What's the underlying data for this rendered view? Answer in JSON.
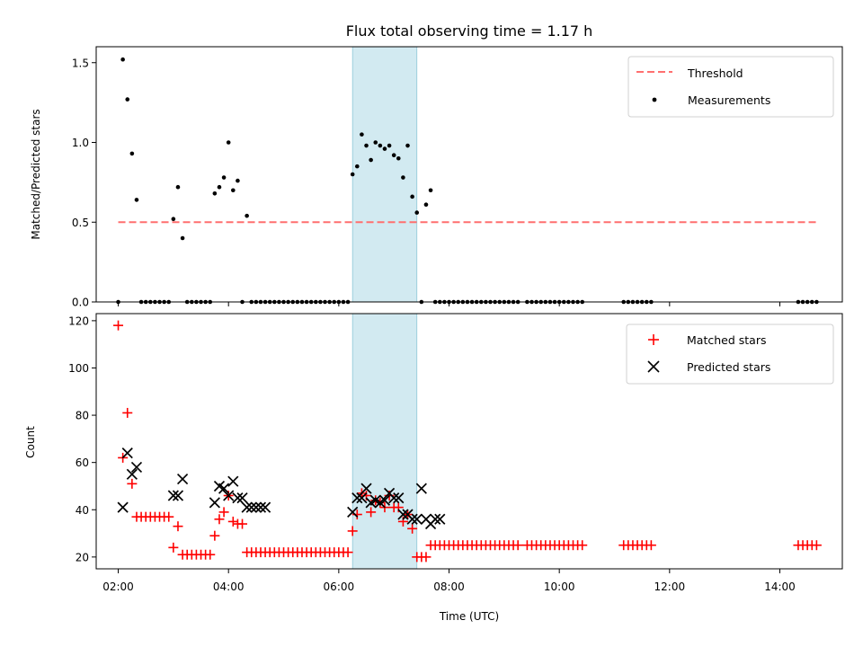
{
  "chart_data": [
    {
      "type": "scatter",
      "title": "Flux total observing time = 1.17 h",
      "xlabel": "",
      "ylabel": "Matched/Predicted stars",
      "xlim": [
        "01:36",
        "15:08"
      ],
      "ylim": [
        0,
        1.6
      ],
      "yticks": [
        0.0,
        0.5,
        1.0,
        1.5
      ],
      "ytick_labels": [
        "0.0",
        "0.5",
        "1.0",
        "1.5"
      ],
      "highlight_span": [
        "06:15",
        "07:25"
      ],
      "legend": [
        "Threshold",
        "Measurements"
      ],
      "legend_position": "upper right",
      "threshold": {
        "name": "Threshold",
        "y": 0.5,
        "x_start": "02:00",
        "x_end": "14:40",
        "color": "#ff6f6f"
      },
      "series": [
        {
          "name": "Measurements",
          "color": "#000000",
          "x": [
            "02:00",
            "02:05",
            "02:10",
            "02:15",
            "02:20",
            "02:25",
            "02:30",
            "02:35",
            "02:40",
            "02:45",
            "02:50",
            "02:55",
            "03:00",
            "03:05",
            "03:10",
            "03:15",
            "03:20",
            "03:25",
            "03:30",
            "03:35",
            "03:40",
            "03:45",
            "03:50",
            "03:55",
            "04:00",
            "04:05",
            "04:10",
            "04:15",
            "04:20",
            "04:25",
            "04:30",
            "04:35",
            "04:40",
            "04:45",
            "04:50",
            "04:55",
            "05:00",
            "05:05",
            "05:10",
            "05:15",
            "05:20",
            "05:25",
            "05:30",
            "05:35",
            "05:40",
            "05:45",
            "05:50",
            "05:55",
            "06:00",
            "06:05",
            "06:10",
            "06:15",
            "06:20",
            "06:25",
            "06:30",
            "06:35",
            "06:40",
            "06:45",
            "06:50",
            "06:55",
            "07:00",
            "07:05",
            "07:10",
            "07:15",
            "07:20",
            "07:25",
            "07:30",
            "07:35",
            "07:40",
            "07:45",
            "07:50",
            "07:55",
            "08:00",
            "08:05",
            "08:10",
            "08:15",
            "08:20",
            "08:25",
            "08:30",
            "08:35",
            "08:40",
            "08:45",
            "08:50",
            "08:55",
            "09:00",
            "09:05",
            "09:10",
            "09:15",
            "09:25",
            "09:30",
            "09:35",
            "09:40",
            "09:45",
            "09:50",
            "09:55",
            "10:00",
            "10:05",
            "10:10",
            "10:15",
            "10:20",
            "10:25",
            "11:10",
            "11:15",
            "11:20",
            "11:25",
            "11:30",
            "11:35",
            "11:40",
            "14:20",
            "14:25",
            "14:30",
            "14:35",
            "14:40"
          ],
          "y": [
            0.0,
            1.52,
            1.27,
            0.93,
            0.64,
            0.0,
            0.0,
            0.0,
            0.0,
            0.0,
            0.0,
            0.0,
            0.52,
            0.72,
            0.4,
            0.0,
            0.0,
            0.0,
            0.0,
            0.0,
            0.0,
            0.68,
            0.72,
            0.78,
            1.0,
            0.7,
            0.76,
            0.0,
            0.54,
            0.0,
            0.0,
            0.0,
            0.0,
            0.0,
            0.0,
            0.0,
            0.0,
            0.0,
            0.0,
            0.0,
            0.0,
            0.0,
            0.0,
            0.0,
            0.0,
            0.0,
            0.0,
            0.0,
            0.0,
            0.0,
            0.0,
            0.8,
            0.85,
            1.05,
            0.98,
            0.89,
            1.0,
            0.98,
            0.96,
            0.98,
            0.92,
            0.9,
            0.78,
            0.98,
            0.66,
            0.56,
            0.0,
            0.61,
            0.7,
            0.0,
            0.0,
            0.0,
            0.0,
            0.0,
            0.0,
            0.0,
            0.0,
            0.0,
            0.0,
            0.0,
            0.0,
            0.0,
            0.0,
            0.0,
            0.0,
            0.0,
            0.0,
            0.0,
            0.0,
            0.0,
            0.0,
            0.0,
            0.0,
            0.0,
            0.0,
            0.0,
            0.0,
            0.0,
            0.0,
            0.0,
            0.0,
            0.0,
            0.0,
            0.0,
            0.0,
            0.0,
            0.0,
            0.0,
            0.0,
            0.0,
            0.0,
            0.0,
            0.0
          ]
        }
      ]
    },
    {
      "type": "scatter",
      "title": "",
      "xlabel": "Time (UTC)",
      "ylabel": "Count",
      "xlim": [
        "01:36",
        "15:08"
      ],
      "xticks": [
        "02:00",
        "04:00",
        "06:00",
        "08:00",
        "10:00",
        "12:00",
        "14:00"
      ],
      "ylim": [
        15,
        123
      ],
      "yticks": [
        20,
        40,
        60,
        80,
        100,
        120
      ],
      "ytick_labels": [
        "20",
        "40",
        "60",
        "80",
        "100",
        "120"
      ],
      "highlight_span": [
        "06:15",
        "07:25"
      ],
      "legend": [
        "Matched stars",
        "Predicted stars"
      ],
      "legend_position": "upper right",
      "series": [
        {
          "name": "Matched stars",
          "color": "#ff0000",
          "marker": "plus",
          "x": [
            "02:00",
            "02:05",
            "02:10",
            "02:15",
            "02:20",
            "02:25",
            "02:30",
            "02:35",
            "02:40",
            "02:45",
            "02:50",
            "02:55",
            "03:00",
            "03:05",
            "03:10",
            "03:15",
            "03:20",
            "03:25",
            "03:30",
            "03:35",
            "03:40",
            "03:45",
            "03:50",
            "03:55",
            "04:00",
            "04:05",
            "04:10",
            "04:15",
            "04:20",
            "04:25",
            "04:30",
            "04:35",
            "04:40",
            "04:45",
            "04:50",
            "04:55",
            "05:00",
            "05:05",
            "05:10",
            "05:15",
            "05:20",
            "05:25",
            "05:30",
            "05:35",
            "05:40",
            "05:45",
            "05:50",
            "05:55",
            "06:00",
            "06:05",
            "06:10",
            "06:15",
            "06:20",
            "06:25",
            "06:30",
            "06:35",
            "06:40",
            "06:45",
            "06:50",
            "06:55",
            "07:00",
            "07:05",
            "07:10",
            "07:15",
            "07:20",
            "07:25",
            "07:30",
            "07:35",
            "07:40",
            "07:45",
            "07:50",
            "07:55",
            "08:00",
            "08:05",
            "08:10",
            "08:15",
            "08:20",
            "08:25",
            "08:30",
            "08:35",
            "08:40",
            "08:45",
            "08:50",
            "08:55",
            "09:00",
            "09:05",
            "09:10",
            "09:15",
            "09:25",
            "09:30",
            "09:35",
            "09:40",
            "09:45",
            "09:50",
            "09:55",
            "10:00",
            "10:05",
            "10:10",
            "10:15",
            "10:20",
            "10:25",
            "11:10",
            "11:15",
            "11:20",
            "11:25",
            "11:30",
            "11:35",
            "11:40",
            "14:20",
            "14:25",
            "14:30",
            "14:35",
            "14:40"
          ],
          "y": [
            118,
            62,
            81,
            51,
            37,
            37,
            37,
            37,
            37,
            37,
            37,
            37,
            24,
            33,
            21,
            21,
            21,
            21,
            21,
            21,
            21,
            29,
            36,
            39,
            46,
            35,
            34,
            34,
            22,
            22,
            22,
            22,
            22,
            22,
            22,
            22,
            22,
            22,
            22,
            22,
            22,
            22,
            22,
            22,
            22,
            22,
            22,
            22,
            22,
            22,
            22,
            31,
            38,
            47,
            46,
            39,
            44,
            43,
            41,
            46,
            41,
            41,
            35,
            38,
            32,
            20,
            20,
            20,
            25,
            25,
            25,
            25,
            25,
            25,
            25,
            25,
            25,
            25,
            25,
            25,
            25,
            25,
            25,
            25,
            25,
            25,
            25,
            25,
            25,
            25,
            25,
            25,
            25,
            25,
            25,
            25,
            25,
            25,
            25,
            25,
            25,
            25,
            25,
            25,
            25,
            25,
            25,
            25,
            25,
            25,
            25,
            25,
            25
          ]
        },
        {
          "name": "Predicted stars",
          "color": "#000000",
          "marker": "x",
          "x": [
            "02:05",
            "02:10",
            "02:15",
            "02:20",
            "03:00",
            "03:05",
            "03:10",
            "03:45",
            "03:50",
            "03:55",
            "04:00",
            "04:05",
            "04:10",
            "04:15",
            "04:20",
            "04:25",
            "04:30",
            "04:35",
            "04:40",
            "06:15",
            "06:20",
            "06:25",
            "06:30",
            "06:35",
            "06:40",
            "06:45",
            "06:50",
            "06:55",
            "07:00",
            "07:05",
            "07:10",
            "07:15",
            "07:20",
            "07:25",
            "07:30",
            "07:35",
            "07:40",
            "07:45",
            "07:50"
          ],
          "y": [
            41,
            64,
            55,
            58,
            46,
            46,
            53,
            43,
            50,
            49,
            46,
            52,
            45,
            45,
            41,
            41,
            41,
            41,
            41,
            39,
            45,
            45,
            49,
            43,
            44,
            43,
            44,
            47,
            45,
            45,
            38,
            38,
            36,
            36,
            49,
            36,
            34,
            36,
            36
          ]
        }
      ]
    }
  ]
}
